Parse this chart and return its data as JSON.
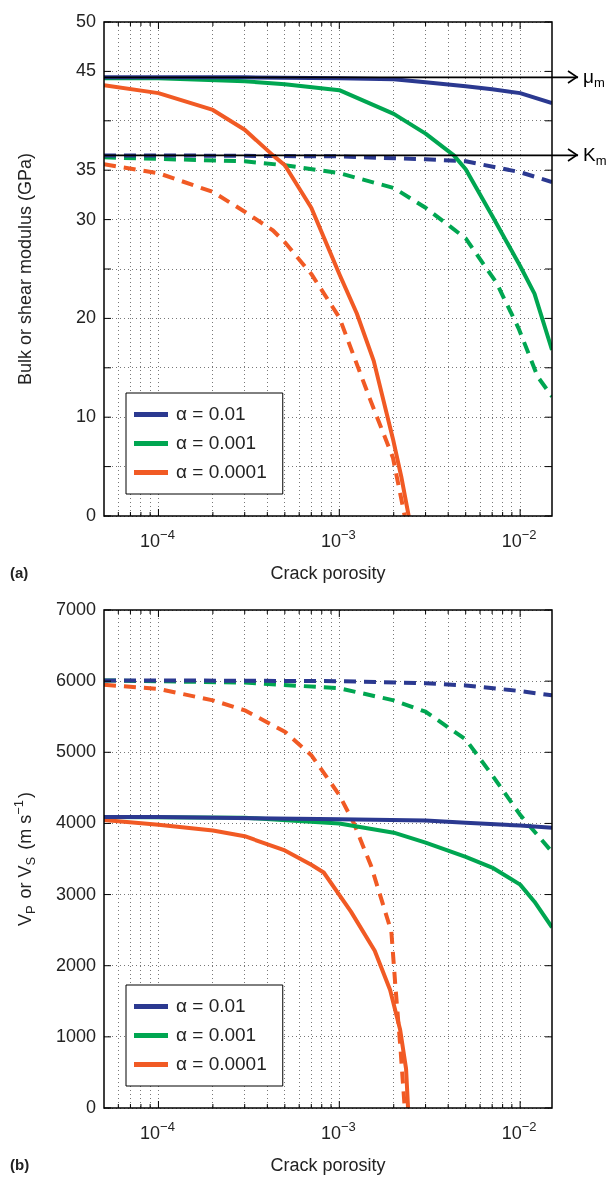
{
  "chart_data": [
    {
      "type": "line",
      "xlabel": "Crack porosity",
      "ylabel": "Bulk or shear modulus (GPa)",
      "log": "x",
      "grid": true,
      "legend": "bottom left",
      "marker": "none",
      "annotations": [
        "(a)"
      ],
      "xlim": [
        5e-05,
        0.015
      ],
      "xticks": [
        {
          "value": 6e-05,
          "label": null
        },
        {
          "value": 7e-05,
          "label": null
        },
        {
          "value": 8e-05,
          "label": null
        },
        {
          "value": 9e-05,
          "label": null
        },
        {
          "value": 0.0001,
          "label": "10$^{−4}$"
        },
        {
          "value": 0.0002,
          "label": null
        },
        {
          "value": 0.0003,
          "label": null
        },
        {
          "value": 0.0004,
          "label": null
        },
        {
          "value": 0.0005,
          "label": null
        },
        {
          "value": 0.0006,
          "label": null
        },
        {
          "value": 0.0007,
          "label": null
        },
        {
          "value": 0.0008,
          "label": null
        },
        {
          "value": 0.0009,
          "label": null
        },
        {
          "value": 0.001,
          "label": "10$^{−3}$"
        },
        {
          "value": 0.002,
          "label": null
        },
        {
          "value": 0.003,
          "label": null
        },
        {
          "value": 0.004,
          "label": null
        },
        {
          "value": 0.005,
          "label": null
        },
        {
          "value": 0.006,
          "label": null
        },
        {
          "value": 0.007,
          "label": null
        },
        {
          "value": 0.008,
          "label": null
        },
        {
          "value": 0.009,
          "label": null
        },
        {
          "value": 0.01,
          "label": "10$^{−2}$"
        }
      ],
      "ylim": [
        0,
        50
      ],
      "yticks": [
        0,
        {
          "value": 5,
          "label": null
        },
        10,
        {
          "value": 15,
          "label": null
        },
        20,
        {
          "value": 25,
          "label": null
        },
        30,
        35,
        {
          "value": 40,
          "label": null
        },
        45,
        50
      ],
      "ref_lines": [
        {
          "axis": "y",
          "value": 44.4,
          "label": "μ$_{m}$",
          "color": "#000000"
        },
        {
          "axis": "y",
          "value": 36.5,
          "label": "K$_{m}$",
          "color": "#000000"
        }
      ],
      "series": [
        {
          "name": "α = 0.01",
          "color": "#2b3990",
          "line_style": "solid",
          "x": [
            5e-05,
            0.0001,
            0.0003,
            0.001,
            0.002,
            0.003,
            0.005,
            0.007,
            0.01,
            0.015
          ],
          "values": [
            44.4,
            44.4,
            44.4,
            44.3,
            44.2,
            43.9,
            43.5,
            43.2,
            42.8,
            41.8
          ]
        },
        {
          "name": "α = 0.001",
          "color": "#00a651",
          "line_style": "solid",
          "x": [
            5e-05,
            0.0001,
            0.0003,
            0.0005,
            0.001,
            0.002,
            0.003,
            0.0043,
            0.005,
            0.007,
            0.01,
            0.012,
            0.015
          ],
          "values": [
            44.3,
            44.3,
            44.0,
            43.7,
            43.1,
            40.7,
            38.7,
            36.5,
            35.1,
            30.4,
            25.3,
            22.5,
            16.8
          ]
        },
        {
          "name": "α = 0.0001",
          "color": "#f15a24",
          "line_style": "solid",
          "x": [
            5e-05,
            0.0001,
            0.0002,
            0.0003,
            0.00043,
            0.0005,
            0.0007,
            0.001,
            0.00125,
            0.00155,
            0.00198,
            0.0022,
            0.00242
          ],
          "values": [
            43.6,
            42.8,
            41.1,
            39.1,
            36.5,
            35.5,
            31.2,
            24.5,
            20.5,
            15.7,
            7.8,
            4,
            0
          ]
        },
        {
          "color": "#2b3990",
          "line_style": "dashed",
          "x": [
            5e-05,
            0.0001,
            0.001,
            0.003,
            0.005,
            0.01,
            0.015
          ],
          "values": [
            36.5,
            36.5,
            36.4,
            36.1,
            35.9,
            34.8,
            33.8
          ]
        },
        {
          "color": "#00a651",
          "line_style": "dashed",
          "x": [
            5e-05,
            0.0003,
            0.0005,
            0.001,
            0.002,
            0.003,
            0.005,
            0.0074,
            0.0098,
            0.0125,
            0.015
          ],
          "values": [
            36.3,
            35.9,
            35.5,
            34.7,
            33.2,
            31.2,
            28.1,
            23.6,
            19.0,
            14.1,
            12.1
          ]
        },
        {
          "color": "#f15a24",
          "line_style": "dashed",
          "x": [
            5e-05,
            0.0001,
            0.0002,
            0.0003,
            0.00043,
            0.0005,
            0.0007,
            0.001,
            0.00148,
            0.00198,
            0.0023
          ],
          "values": [
            35.6,
            34.7,
            32.8,
            30.8,
            28.9,
            27.7,
            24.5,
            20.1,
            11.8,
            5.9,
            0
          ]
        }
      ]
    },
    {
      "type": "line",
      "xlabel": "Crack porosity",
      "ylabel": "V$_{P}$ or V$_{S}$ (m s$^{−1}$)",
      "log": "x",
      "grid": true,
      "legend": "bottom left",
      "marker": "none",
      "annotations": [
        "(b)"
      ],
      "xlim": [
        5e-05,
        0.015
      ],
      "xticks": [
        {
          "value": 6e-05,
          "label": null
        },
        {
          "value": 7e-05,
          "label": null
        },
        {
          "value": 8e-05,
          "label": null
        },
        {
          "value": 9e-05,
          "label": null
        },
        {
          "value": 0.0001,
          "label": "10$^{−4}$"
        },
        {
          "value": 0.0002,
          "label": null
        },
        {
          "value": 0.0003,
          "label": null
        },
        {
          "value": 0.0004,
          "label": null
        },
        {
          "value": 0.0005,
          "label": null
        },
        {
          "value": 0.0006,
          "label": null
        },
        {
          "value": 0.0007,
          "label": null
        },
        {
          "value": 0.0008,
          "label": null
        },
        {
          "value": 0.0009,
          "label": null
        },
        {
          "value": 0.001,
          "label": "10$^{−3}$"
        },
        {
          "value": 0.002,
          "label": null
        },
        {
          "value": 0.003,
          "label": null
        },
        {
          "value": 0.004,
          "label": null
        },
        {
          "value": 0.005,
          "label": null
        },
        {
          "value": 0.006,
          "label": null
        },
        {
          "value": 0.007,
          "label": null
        },
        {
          "value": 0.008,
          "label": null
        },
        {
          "value": 0.009,
          "label": null
        },
        {
          "value": 0.01,
          "label": "10$^{−2}$"
        }
      ],
      "ylim": [
        0,
        7000
      ],
      "yticks": [
        0,
        1000,
        2000,
        3000,
        4000,
        5000,
        6000,
        7000
      ],
      "series": [
        {
          "name": "α = 0.01",
          "color": "#2b3990",
          "line_style": "solid",
          "x": [
            5e-05,
            0.0001,
            0.001,
            0.003,
            0.005,
            0.01,
            0.015
          ],
          "values": [
            4090,
            4090,
            4060,
            4040,
            4010,
            3970,
            3940
          ]
        },
        {
          "name": "α = 0.001",
          "color": "#00a651",
          "line_style": "solid",
          "x": [
            5e-05,
            0.0003,
            0.001,
            0.002,
            0.003,
            0.005,
            0.007,
            0.01,
            0.012,
            0.015
          ],
          "values": [
            4090,
            4080,
            4000,
            3870,
            3730,
            3530,
            3380,
            3140,
            2900,
            2540
          ]
        },
        {
          "name": "α = 0.0001",
          "color": "#f15a24",
          "line_style": "solid",
          "x": [
            5e-05,
            0.0001,
            0.0002,
            0.0003,
            0.0005,
            0.0007,
            0.00082,
            0.00116,
            0.00157,
            0.00191,
            0.00217,
            0.00234,
            0.0024
          ],
          "values": [
            4050,
            3980,
            3900,
            3820,
            3620,
            3420,
            3310,
            2760,
            2210,
            1660,
            1100,
            550,
            0
          ]
        },
        {
          "color": "#2b3990",
          "line_style": "dashed",
          "x": [
            5e-05,
            0.0001,
            0.001,
            0.003,
            0.005,
            0.01,
            0.015
          ],
          "values": [
            6010,
            6010,
            6000,
            5970,
            5940,
            5860,
            5800
          ]
        },
        {
          "color": "#00a651",
          "line_style": "dashed",
          "x": [
            5e-05,
            0.0003,
            0.001,
            0.002,
            0.003,
            0.005,
            0.007,
            0.01,
            0.015
          ],
          "values": [
            6010,
            5980,
            5900,
            5730,
            5570,
            5180,
            4680,
            4120,
            3600
          ]
        },
        {
          "color": "#f15a24",
          "line_style": "dashed",
          "x": [
            5e-05,
            0.0001,
            0.0002,
            0.0003,
            0.0005,
            0.0007,
            0.001,
            0.0012,
            0.0015,
            0.00194,
            0.00205,
            0.00218,
            0.0023
          ],
          "values": [
            5950,
            5890,
            5730,
            5590,
            5290,
            4960,
            4400,
            4010,
            3400,
            2480,
            1660,
            830,
            0
          ]
        }
      ]
    }
  ]
}
